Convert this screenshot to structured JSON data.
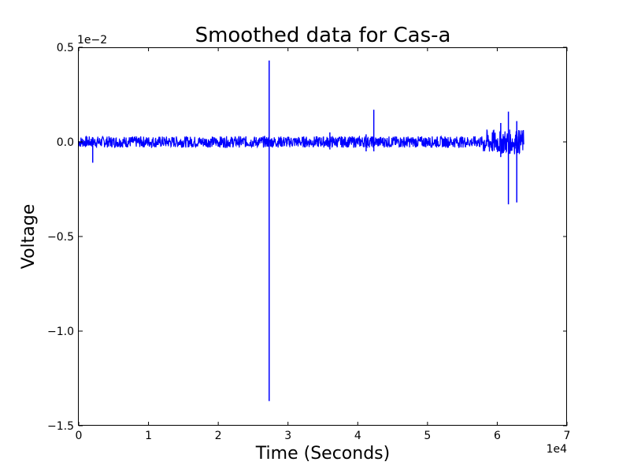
{
  "chart_data": {
    "type": "line",
    "title": "Smoothed data for Cas-a",
    "xlabel": "Time (Seconds)",
    "ylabel": "Voltage",
    "x_offset_text": "1e4",
    "y_offset_text": "1e−2",
    "xlim": [
      0,
      7
    ],
    "ylim": [
      -1.5,
      0.5
    ],
    "x_ticks": [
      0,
      1,
      2,
      3,
      4,
      5,
      6,
      7
    ],
    "x_tick_labels": [
      "0",
      "1",
      "2",
      "3",
      "4",
      "5",
      "6",
      "7"
    ],
    "y_ticks": [
      0.5,
      0.0,
      -0.5,
      -1.0,
      -1.5
    ],
    "y_tick_labels": [
      "0.5",
      "0.0",
      "−0.5",
      "−1.0",
      "−1.5"
    ],
    "grid": false,
    "line_color": "#0000ff",
    "series": [
      {
        "x_range": [
          0,
          6.38
        ],
        "baseline": 0.0,
        "noise_amplitude": 0.03,
        "spikes": [
          {
            "x": 0.2,
            "y_max": 0.02,
            "y_min": -0.11
          },
          {
            "x": 2.73,
            "y_max": 0.43,
            "y_min": -1.37
          },
          {
            "x": 3.6,
            "y_max": 0.05,
            "y_min": -0.04
          },
          {
            "x": 4.12,
            "y_max": 0.04,
            "y_min": -0.05
          },
          {
            "x": 4.23,
            "y_max": 0.17,
            "y_min": -0.05
          },
          {
            "x": 6.05,
            "y_max": 0.1,
            "y_min": -0.08
          },
          {
            "x": 6.16,
            "y_max": 0.16,
            "y_min": -0.33
          },
          {
            "x": 6.28,
            "y_max": 0.11,
            "y_min": -0.32
          }
        ]
      }
    ]
  }
}
